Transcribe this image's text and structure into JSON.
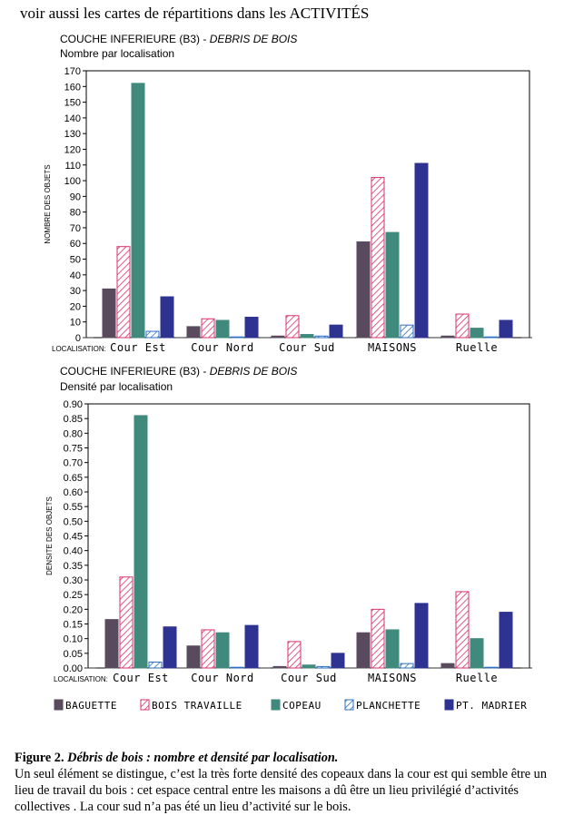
{
  "header": {
    "note": "voir aussi les cartes de répartitions dans les ACTIVITÉS"
  },
  "legend": {
    "items": [
      "BAGUETTE",
      "BOIS TRAVAILLE",
      "COPEAU",
      "PLANCHETTE",
      "PT. MADRIER"
    ]
  },
  "colors": {
    "baguette": "#5a4a5e",
    "bois_travaille": "#d9306a",
    "copeau": "#3f8a7c",
    "planchette": "#2d6fc0",
    "madrier": "#2e3391"
  },
  "chart_data": [
    {
      "type": "bar",
      "title": "COUCHE INFERIEURE (B3) - ",
      "title_italic": "DEBRIS DE BOIS",
      "subtitle": "Nombre par localisation",
      "xlabel": "LOCALISATION:",
      "ylabel": "NOMBRE DES OBJETS",
      "categories": [
        "Cour Est",
        "Cour Nord",
        "Cour Sud",
        "MAISONS",
        "Ruelle"
      ],
      "ylim": [
        0,
        170
      ],
      "yticks": [
        "0",
        "10",
        "20",
        "30",
        "40",
        "50",
        "60",
        "70",
        "80",
        "90",
        "100",
        "110",
        "120",
        "130",
        "140",
        "150",
        "160",
        "170"
      ],
      "series": [
        {
          "name": "BAGUETTE",
          "values": [
            31,
            7,
            1,
            61,
            1
          ]
        },
        {
          "name": "BOIS TRAVAILLE",
          "values": [
            58,
            12,
            14,
            102,
            15
          ]
        },
        {
          "name": "COPEAU",
          "values": [
            162,
            11,
            2,
            67,
            6
          ]
        },
        {
          "name": "PLANCHETTE",
          "values": [
            4,
            0,
            1,
            8,
            0
          ]
        },
        {
          "name": "PT. MADRIER",
          "values": [
            26,
            13,
            8,
            111,
            11
          ]
        }
      ]
    },
    {
      "type": "bar",
      "title": "COUCHE INFERIEURE (B3) - ",
      "title_italic": "DEBRIS DE BOIS",
      "subtitle": "Densité par localisation",
      "xlabel": "LOCALISATION:",
      "ylabel": "DENSITE DES OBJETS",
      "categories": [
        "Cour Est",
        "Cour Nord",
        "Cour Sud",
        "MAISONS",
        "Ruelle"
      ],
      "ylim": [
        0,
        0.9
      ],
      "yticks": [
        "0.00",
        "0.05",
        "0.10",
        "0.15",
        "0.20",
        "0.25",
        "0.30",
        "0.35",
        "0.40",
        "0.45",
        "0.50",
        "0.55",
        "0.60",
        "0.65",
        "0.70",
        "0.75",
        "0.80",
        "0.85",
        "0.90"
      ],
      "series": [
        {
          "name": "BAGUETTE",
          "values": [
            0.165,
            0.075,
            0.005,
            0.12,
            0.015
          ]
        },
        {
          "name": "BOIS TRAVAILLE",
          "values": [
            0.31,
            0.13,
            0.09,
            0.2,
            0.26
          ]
        },
        {
          "name": "COPEAU",
          "values": [
            0.86,
            0.12,
            0.01,
            0.13,
            0.1
          ]
        },
        {
          "name": "PLANCHETTE",
          "values": [
            0.02,
            0.0,
            0.005,
            0.015,
            0.0
          ]
        },
        {
          "name": "PT. MADRIER",
          "values": [
            0.14,
            0.145,
            0.05,
            0.22,
            0.19
          ]
        }
      ]
    }
  ],
  "caption": {
    "figure_label": "Figure 2.",
    "figure_title": "Débris  de bois : nombre et densité par localisation.",
    "body": "Un seul élément se distingue, c’est la très forte densité des copeaux dans la cour est qui semble être un lieu de travail du bois : cet espace central entre les maisons a dû être un lieu privilégié d’activités collectives . La cour sud n’a pas été un lieu d’activité sur le bois."
  }
}
